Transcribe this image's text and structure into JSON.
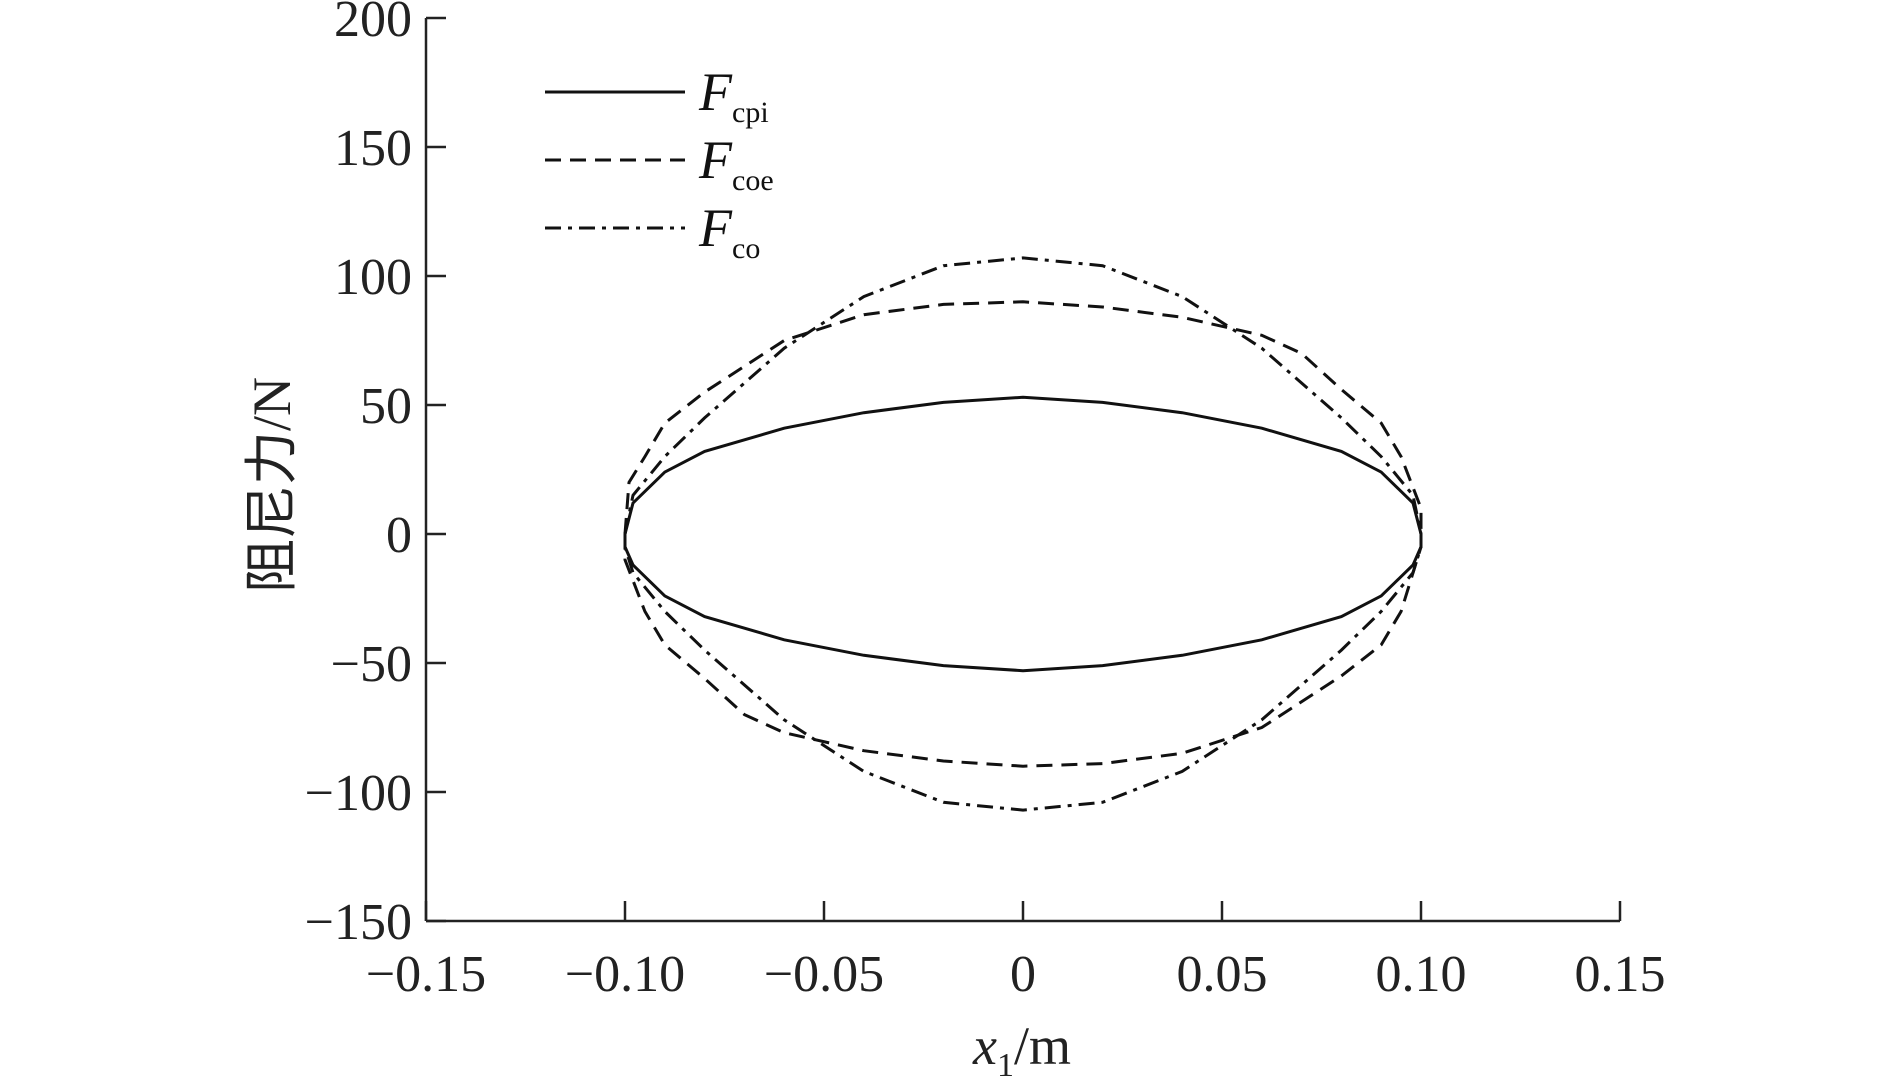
{
  "chart_data": {
    "type": "line",
    "xlabel": {
      "main": "x",
      "sub": "1",
      "unit": "/m"
    },
    "ylabel": "阻尼力/N",
    "xlim": [
      -0.15,
      0.15
    ],
    "ylim": [
      -150,
      200
    ],
    "xticks": [
      {
        "value": -0.15,
        "label": "−0.15"
      },
      {
        "value": -0.1,
        "label": "−0.10"
      },
      {
        "value": -0.05,
        "label": "−0.05"
      },
      {
        "value": 0,
        "label": "0"
      },
      {
        "value": 0.05,
        "label": "0.05"
      },
      {
        "value": 0.1,
        "label": "0.10"
      },
      {
        "value": 0.15,
        "label": "0.15"
      }
    ],
    "yticks": [
      {
        "value": 200,
        "label": "200"
      },
      {
        "value": 150,
        "label": "150"
      },
      {
        "value": 100,
        "label": "100"
      },
      {
        "value": 50,
        "label": "50"
      },
      {
        "value": 0,
        "label": "0"
      },
      {
        "value": -50,
        "label": "−50"
      },
      {
        "value": -100,
        "label": "−100"
      },
      {
        "value": -150,
        "label": "−150"
      }
    ],
    "legend_position": "top-left",
    "grid": false,
    "series": [
      {
        "name": "F",
        "subscript": "cpi",
        "style": "solid",
        "x": [
          -0.1,
          -0.098,
          -0.09,
          -0.08,
          -0.06,
          -0.04,
          -0.02,
          0,
          0.02,
          0.04,
          0.06,
          0.08,
          0.09,
          0.098,
          0.1,
          0.1,
          0.098,
          0.09,
          0.08,
          0.06,
          0.04,
          0.02,
          0,
          -0.02,
          -0.04,
          -0.06,
          -0.08,
          -0.09,
          -0.098,
          -0.1,
          -0.1
        ],
        "y": [
          0,
          12,
          24,
          32,
          41,
          47,
          51,
          53,
          51,
          47,
          41,
          32,
          24,
          12,
          0,
          -5,
          -12,
          -24,
          -32,
          -41,
          -47,
          -51,
          -53,
          -51,
          -47,
          -41,
          -32,
          -24,
          -12,
          -5,
          0
        ]
      },
      {
        "name": "F",
        "subscript": "coe",
        "style": "dashed",
        "x": [
          -0.1,
          -0.099,
          -0.095,
          -0.09,
          -0.08,
          -0.06,
          -0.04,
          -0.02,
          0,
          0.02,
          0.04,
          0.06,
          0.07,
          0.08,
          0.09,
          0.095,
          0.1,
          0.1,
          0.095,
          0.09,
          0.08,
          0.06,
          0.04,
          0.02,
          0,
          -0.02,
          -0.04,
          -0.06,
          -0.07,
          -0.08,
          -0.09,
          -0.095,
          -0.1,
          -0.1
        ],
        "y": [
          0,
          20,
          30,
          43,
          55,
          75,
          85,
          89,
          90,
          88,
          84,
          77,
          70,
          56,
          43,
          30,
          10,
          -5,
          -30,
          -43,
          -55,
          -75,
          -85,
          -89,
          -90,
          -88,
          -84,
          -77,
          -70,
          -56,
          -43,
          -30,
          -10,
          0
        ]
      },
      {
        "name": "F",
        "subscript": "co",
        "style": "dashdot",
        "x": [
          -0.1,
          -0.098,
          -0.09,
          -0.08,
          -0.06,
          -0.04,
          -0.02,
          0,
          0.02,
          0.04,
          0.06,
          0.08,
          0.09,
          0.098,
          0.1,
          0.1,
          0.098,
          0.09,
          0.08,
          0.06,
          0.04,
          0.02,
          0,
          -0.02,
          -0.04,
          -0.06,
          -0.08,
          -0.09,
          -0.098,
          -0.1,
          -0.1
        ],
        "y": [
          0,
          15,
          30,
          45,
          72,
          92,
          104,
          107,
          104,
          92,
          72,
          45,
          30,
          15,
          0,
          -5,
          -15,
          -30,
          -45,
          -72,
          -92,
          -104,
          -107,
          -104,
          -92,
          -72,
          -45,
          -30,
          -15,
          -5,
          0
        ]
      }
    ]
  }
}
